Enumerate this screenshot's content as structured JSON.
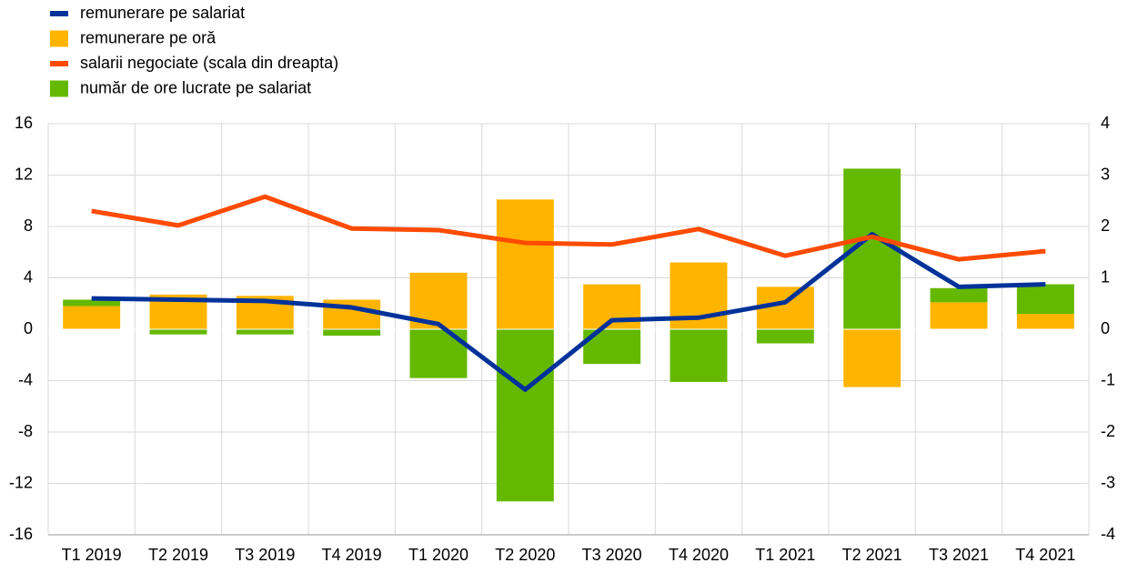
{
  "chart_data": {
    "type": "bar",
    "categories": [
      "T1 2019",
      "T2 2019",
      "T3 2019",
      "T4 2019",
      "T1 2020",
      "T2 2020",
      "T3 2020",
      "T4 2020",
      "T1 2021",
      "T2 2021",
      "T3 2021",
      "T4 2021"
    ],
    "series": [
      {
        "name": "remunerare pe salariat",
        "type": "line",
        "color": "#003299",
        "values": [
          2.4,
          2.3,
          2.2,
          1.7,
          0.4,
          -4.7,
          0.7,
          0.9,
          2.1,
          7.4,
          3.3,
          3.5
        ]
      },
      {
        "name": "remunerare pe oră",
        "type": "bar",
        "color": "#ffb400",
        "values": [
          1.8,
          2.7,
          2.6,
          2.3,
          4.4,
          10.1,
          3.5,
          5.2,
          3.3,
          -4.5,
          2.1,
          1.2
        ]
      },
      {
        "name": "salarii negociate (scala din dreapta)",
        "type": "line",
        "axis": "y2",
        "color": "#ff4b00",
        "values": [
          2.3,
          2.02,
          2.58,
          1.96,
          1.93,
          1.68,
          1.65,
          1.95,
          1.43,
          1.8,
          1.36,
          1.52
        ]
      },
      {
        "name": "număr de ore lucrate pe salariat",
        "type": "bar",
        "color": "#65b800",
        "values": [
          0.5,
          -0.4,
          -0.4,
          -0.5,
          -3.8,
          -13.4,
          -2.7,
          -4.1,
          -1.1,
          12.5,
          1.1,
          2.3
        ]
      }
    ],
    "ylim": [
      -16,
      16
    ],
    "yticks": [
      -16,
      -12,
      -8,
      -4,
      0,
      4,
      8,
      12,
      16
    ],
    "y2lim": [
      -4,
      4
    ],
    "y2ticks": [
      -4,
      -3,
      -2,
      -1,
      0,
      1,
      2,
      3,
      4
    ],
    "grid": true
  }
}
